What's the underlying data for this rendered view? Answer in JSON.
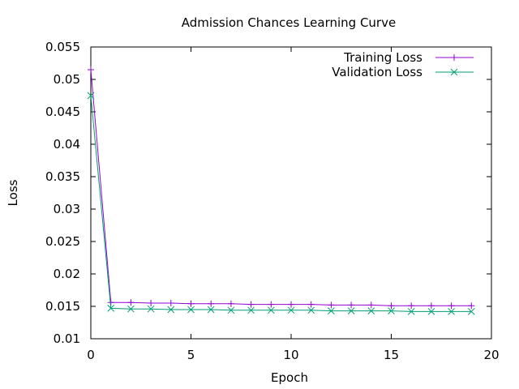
{
  "chart_data": {
    "type": "line",
    "title": "Admission Chances Learning Curve",
    "xlabel": "Epoch",
    "ylabel": "Loss",
    "xlim": [
      0,
      20
    ],
    "ylim": [
      0.01,
      0.055
    ],
    "xticks": [
      0,
      5,
      10,
      15,
      20
    ],
    "xtick_labels": [
      "0",
      "5",
      "10",
      "15",
      "20"
    ],
    "yticks": [
      0.01,
      0.015,
      0.02,
      0.025,
      0.03,
      0.035,
      0.04,
      0.045,
      0.05,
      0.055
    ],
    "ytick_labels": [
      "0.01",
      "0.015",
      "0.02",
      "0.025",
      "0.03",
      "0.035",
      "0.04",
      "0.045",
      "0.05",
      "0.055"
    ],
    "grid": false,
    "legend_position": "top-right",
    "x": [
      0,
      1,
      2,
      3,
      4,
      5,
      6,
      7,
      8,
      9,
      10,
      11,
      12,
      13,
      14,
      15,
      16,
      17,
      18,
      19
    ],
    "series": [
      {
        "name": "Training Loss",
        "marker": "plus",
        "color": "#9400d3",
        "values": [
          0.0515,
          0.0156,
          0.0156,
          0.0155,
          0.0155,
          0.0154,
          0.0154,
          0.0154,
          0.0153,
          0.0153,
          0.0153,
          0.0153,
          0.0152,
          0.0152,
          0.0152,
          0.0151,
          0.0151,
          0.0151,
          0.0151,
          0.0151
        ]
      },
      {
        "name": "Validation Loss",
        "marker": "x",
        "color": "#009e73",
        "values": [
          0.0475,
          0.0147,
          0.0146,
          0.0146,
          0.0145,
          0.0145,
          0.0145,
          0.0144,
          0.0144,
          0.0144,
          0.0144,
          0.0144,
          0.0143,
          0.0143,
          0.0143,
          0.0143,
          0.0142,
          0.0142,
          0.0142,
          0.0142
        ]
      }
    ]
  }
}
